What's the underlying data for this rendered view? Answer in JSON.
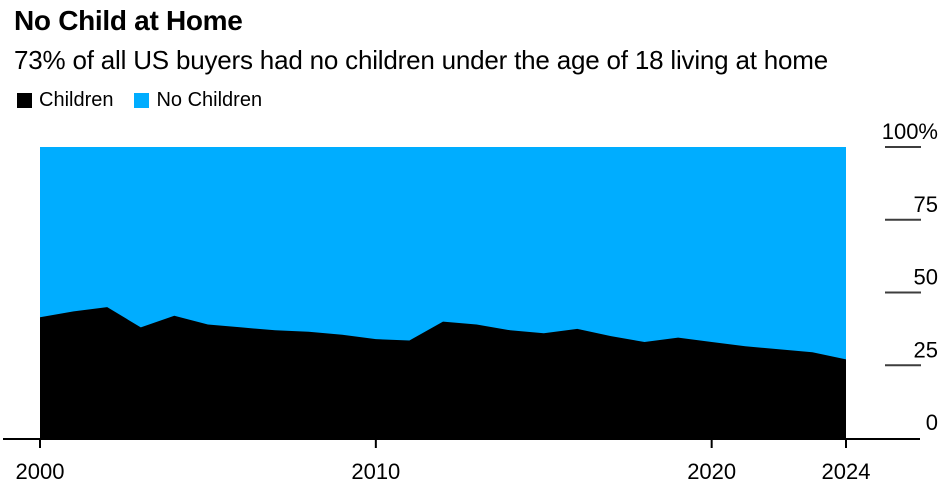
{
  "page": {
    "background": "#ffffff"
  },
  "chart_data": {
    "type": "area",
    "stacked_percent": true,
    "title": "No Child at Home",
    "subtitle": "73% of all US buyers had no children under the age of 18 living at home",
    "xlabel": "",
    "ylabel": "",
    "x": [
      2000,
      2001,
      2002,
      2003,
      2004,
      2005,
      2006,
      2007,
      2008,
      2009,
      2010,
      2011,
      2012,
      2013,
      2014,
      2015,
      2016,
      2017,
      2018,
      2019,
      2020,
      2021,
      2022,
      2023,
      2024
    ],
    "series": [
      {
        "name": "Children",
        "color": "#000000",
        "values": [
          41.5,
          43.5,
          45,
          38,
          42,
          39,
          38,
          37,
          36.5,
          35.5,
          34,
          33.5,
          40,
          39,
          37,
          36,
          37.5,
          35,
          33,
          34.5,
          33,
          31.5,
          30.5,
          29.5,
          27
        ]
      },
      {
        "name": "No Children",
        "color": "#00adff",
        "values": [
          58.5,
          56.5,
          55,
          62,
          58,
          61,
          62,
          63,
          63.5,
          64.5,
          66,
          66.5,
          60,
          61,
          63,
          64,
          62.5,
          65,
          67,
          65.5,
          67,
          68.5,
          69.5,
          70.5,
          73
        ]
      }
    ],
    "xlim": [
      2000,
      2024
    ],
    "ylim": [
      0,
      100
    ],
    "y_ticks": [
      {
        "value": 100,
        "label": "100%"
      },
      {
        "value": 75,
        "label": "75"
      },
      {
        "value": 50,
        "label": "50"
      },
      {
        "value": 25,
        "label": "25"
      },
      {
        "value": 0,
        "label": "0"
      }
    ],
    "x_ticks": [
      {
        "value": 2000,
        "label": "2000"
      },
      {
        "value": 2010,
        "label": "2010"
      },
      {
        "value": 2020,
        "label": "2020"
      },
      {
        "value": 2024,
        "label": "2024"
      }
    ],
    "legend_position": "top-left",
    "grid": false,
    "axis_color": "#000000",
    "tick_color": "#3d3d3d"
  }
}
